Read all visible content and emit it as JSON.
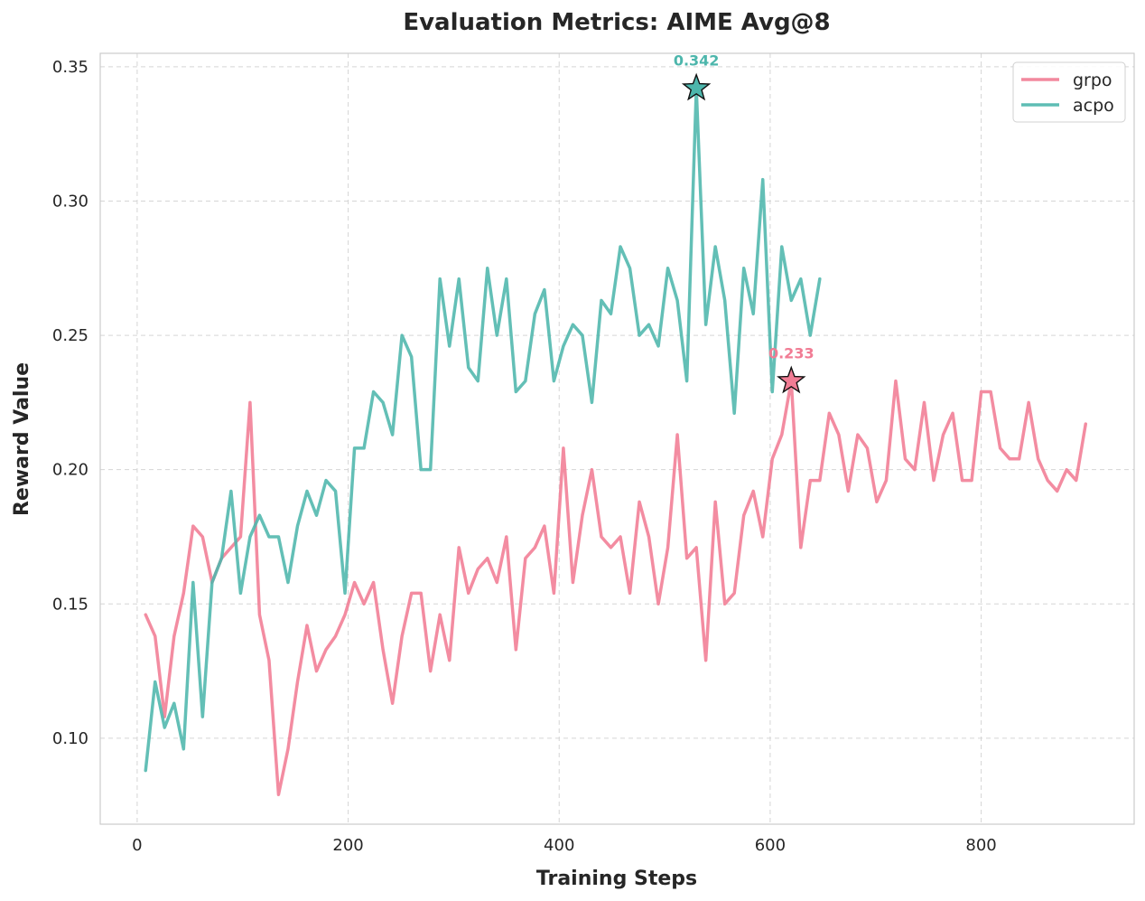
{
  "chart_data": {
    "type": "line",
    "title": "Evaluation Metrics: AIME Avg@8",
    "xlabel": "Training Steps",
    "ylabel": "Reward Value",
    "xlim": [
      -35,
      945
    ],
    "ylim": [
      0.068,
      0.355
    ],
    "xticks": [
      0,
      200,
      400,
      600,
      800
    ],
    "xtick_labels": [
      "0",
      "200",
      "400",
      "600",
      "800"
    ],
    "yticks": [
      0.1,
      0.15,
      0.2,
      0.25,
      0.3,
      0.35
    ],
    "ytick_labels": [
      "0.10",
      "0.15",
      "0.20",
      "0.25",
      "0.30",
      "0.35"
    ],
    "grid": true,
    "legend_position": "top-right",
    "series": [
      {
        "name": "grpo",
        "color": "#f17c94",
        "x": [
          8,
          17,
          26,
          35,
          44,
          53,
          62,
          71,
          80,
          89,
          98,
          107,
          116,
          125,
          134,
          143,
          152,
          161,
          170,
          179,
          188,
          197,
          206,
          215,
          224,
          233,
          242,
          251,
          260,
          269,
          278,
          287,
          296,
          305,
          314,
          323,
          332,
          341,
          350,
          359,
          368,
          377,
          386,
          395,
          404,
          413,
          422,
          431,
          440,
          449,
          458,
          467,
          476,
          485,
          494,
          503,
          512,
          521,
          530,
          539,
          548,
          557,
          566,
          575,
          584,
          593,
          602,
          611,
          620,
          629,
          638,
          647,
          656,
          665,
          674,
          683,
          692,
          701,
          710,
          719,
          728,
          737,
          746,
          755,
          764,
          773,
          782,
          791,
          800,
          809,
          818,
          827,
          836,
          845,
          854,
          863,
          872,
          881,
          890,
          899
        ],
        "values": [
          0.146,
          0.138,
          0.108,
          0.138,
          0.154,
          0.179,
          0.175,
          0.158,
          0.167,
          0.171,
          0.175,
          0.225,
          0.146,
          0.129,
          0.079,
          0.096,
          0.121,
          0.142,
          0.125,
          0.133,
          0.138,
          0.146,
          0.158,
          0.15,
          0.158,
          0.133,
          0.113,
          0.138,
          0.154,
          0.154,
          0.125,
          0.146,
          0.129,
          0.171,
          0.154,
          0.163,
          0.167,
          0.158,
          0.175,
          0.133,
          0.167,
          0.171,
          0.179,
          0.154,
          0.208,
          0.158,
          0.183,
          0.2,
          0.175,
          0.171,
          0.175,
          0.154,
          0.188,
          0.175,
          0.15,
          0.171,
          0.213,
          0.167,
          0.171,
          0.129,
          0.188,
          0.15,
          0.154,
          0.183,
          0.192,
          0.175,
          0.204,
          0.213,
          0.233,
          0.171,
          0.196,
          0.196,
          0.221,
          0.213,
          0.192,
          0.213,
          0.208,
          0.188,
          0.196,
          0.233,
          0.204,
          0.2,
          0.225,
          0.196,
          0.213,
          0.221,
          0.196,
          0.196,
          0.229,
          0.229,
          0.208,
          0.204,
          0.204,
          0.225,
          0.204,
          0.196,
          0.192,
          0.2,
          0.196,
          0.217
        ],
        "peak": {
          "x": 620,
          "value": 0.233,
          "label": "0.233"
        }
      },
      {
        "name": "acpo",
        "color": "#4db6ac",
        "x": [
          8,
          17,
          26,
          35,
          44,
          53,
          62,
          71,
          80,
          89,
          98,
          107,
          116,
          125,
          134,
          143,
          152,
          161,
          170,
          179,
          188,
          197,
          206,
          215,
          224,
          233,
          242,
          251,
          260,
          269,
          278,
          287,
          296,
          305,
          314,
          323,
          332,
          341,
          350,
          359,
          368,
          377,
          386,
          395,
          404,
          413,
          422,
          431,
          440,
          449,
          458,
          467,
          476,
          485,
          494,
          503,
          512,
          521,
          530,
          539,
          548,
          557,
          566,
          575,
          584,
          593,
          602,
          611,
          620,
          629,
          638,
          647
        ],
        "values": [
          0.088,
          0.121,
          0.104,
          0.113,
          0.096,
          0.158,
          0.108,
          0.158,
          0.167,
          0.192,
          0.154,
          0.175,
          0.183,
          0.175,
          0.175,
          0.158,
          0.179,
          0.192,
          0.183,
          0.196,
          0.192,
          0.154,
          0.208,
          0.208,
          0.229,
          0.225,
          0.213,
          0.25,
          0.242,
          0.2,
          0.2,
          0.271,
          0.246,
          0.271,
          0.238,
          0.233,
          0.275,
          0.25,
          0.271,
          0.229,
          0.233,
          0.258,
          0.267,
          0.233,
          0.246,
          0.254,
          0.25,
          0.225,
          0.263,
          0.258,
          0.283,
          0.275,
          0.25,
          0.254,
          0.246,
          0.275,
          0.263,
          0.233,
          0.342,
          0.254,
          0.283,
          0.263,
          0.221,
          0.275,
          0.258,
          0.308,
          0.229,
          0.283,
          0.263,
          0.271,
          0.25,
          0.271
        ],
        "peak": {
          "x": 530,
          "value": 0.342,
          "label": "0.342"
        }
      }
    ]
  }
}
